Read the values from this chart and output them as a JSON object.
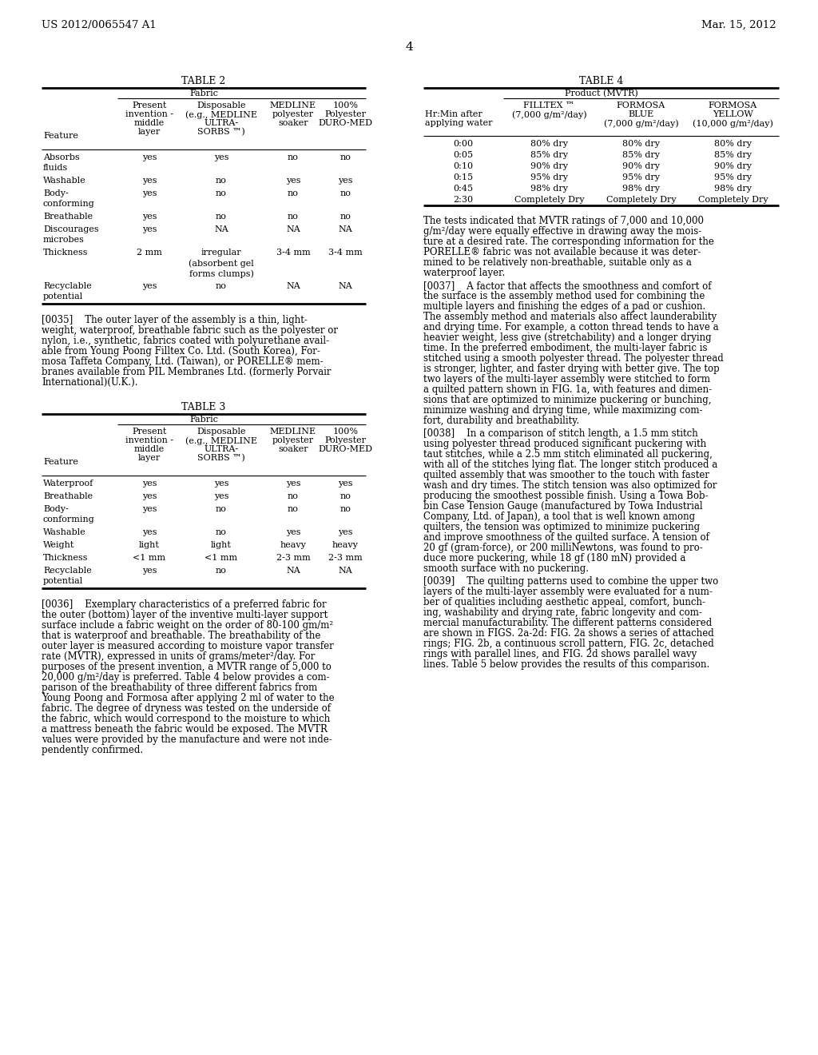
{
  "header_left": "US 2012/0065547 A1",
  "header_right": "Mar. 15, 2012",
  "page_number": "4",
  "bg": "#ffffff",
  "table2_title": "TABLE 2",
  "table2_group": "Fabric",
  "table2_col_headers": [
    "Feature",
    "Present\ninvention -\nmiddle\nlayer",
    "Disposable\n(e.g., MEDLINE\nULTRA-\nSORBS ™)",
    "MEDLINE\npolyester\nsoaker",
    "100%\nPolyester\nDURO-MED"
  ],
  "table2_rows": [
    [
      "Absorbs\nfluids",
      "yes",
      "yes",
      "no",
      "no"
    ],
    [
      "Washable",
      "yes",
      "no",
      "yes",
      "yes"
    ],
    [
      "Body-\nconforming",
      "yes",
      "no",
      "no",
      "no"
    ],
    [
      "Breathable",
      "yes",
      "no",
      "no",
      "no"
    ],
    [
      "Discourages\nmicrobes",
      "yes",
      "NA",
      "NA",
      "NA"
    ],
    [
      "Thickness",
      "2 mm",
      "irregular\n(absorbent gel\nforms clumps)",
      "3-4 mm",
      "3-4 mm"
    ],
    [
      "Recyclable\npotential",
      "yes",
      "no",
      "NA",
      "NA"
    ]
  ],
  "table3_title": "TABLE 3",
  "table3_group": "Fabric",
  "table3_col_headers": [
    "Feature",
    "Present\ninvention -\nmiddle\nlayer",
    "Disposable\n(e.g., MEDLINE\nULTRA-\nSORBS ™)",
    "MEDLINE\npolyester\nsoaker",
    "100%\nPolyester\nDURO-MED"
  ],
  "table3_rows": [
    [
      "Waterproof",
      "yes",
      "yes",
      "yes",
      "yes"
    ],
    [
      "Breathable",
      "yes",
      "yes",
      "no",
      "no"
    ],
    [
      "Body-\nconforming",
      "yes",
      "no",
      "no",
      "no"
    ],
    [
      "Washable",
      "yes",
      "no",
      "yes",
      "yes"
    ],
    [
      "Weight",
      "light",
      "light",
      "heavy",
      "heavy"
    ],
    [
      "Thickness",
      "<1 mm",
      "<1 mm",
      "2-3 mm",
      "2-3 mm"
    ],
    [
      "Recyclable\npotential",
      "yes",
      "no",
      "NA",
      "NA"
    ]
  ],
  "table4_title": "TABLE 4",
  "table4_group": "Product (MVTR)",
  "table4_col_headers": [
    "Hr:Min after\napplying water",
    "FILLTEX ™\n(7,000 g/m²/day)",
    "FORMOSA\nBLUE\n(7,000 g/m²/day)",
    "FORMOSA\nYELLOW\n(10,000 g/m²/day)"
  ],
  "table4_rows": [
    [
      "0:00",
      "80% dry",
      "80% dry",
      "80% dry"
    ],
    [
      "0:05",
      "85% dry",
      "85% dry",
      "85% dry"
    ],
    [
      "0:10",
      "90% dry",
      "90% dry",
      "90% dry"
    ],
    [
      "0:15",
      "95% dry",
      "95% dry",
      "95% dry"
    ],
    [
      "0:45",
      "98% dry",
      "98% dry",
      "98% dry"
    ],
    [
      "2:30",
      "Completely Dry",
      "Completely Dry",
      "Completely Dry"
    ]
  ],
  "para0035_lines": [
    "[0035]    The outer layer of the assembly is a thin, light-",
    "weight, waterproof, breathable fabric such as the polyester or",
    "nylon, i.e., synthetic, fabrics coated with polyurethane avail-",
    "able from Young Poong Filltex Co. Ltd. (South Korea), For-",
    "mosa Taffeta Company, Ltd. (Taiwan), or PORELLE® mem-",
    "branes available from PIL Membranes Ltd. (formerly Porvair",
    "International)(U.K.)."
  ],
  "para0036_lines": [
    "[0036]    Exemplary characteristics of a preferred fabric for",
    "the outer (bottom) layer of the inventive multi-layer support",
    "surface include a fabric weight on the order of 80-100 gm/m²",
    "that is waterproof and breathable. The breathability of the",
    "outer layer is measured according to moisture vapor transfer",
    "rate (MVTR), expressed in units of grams/meter²/day. For",
    "purposes of the present invention, a MVTR range of 5,000 to",
    "20,000 g/m²/day is preferred. Table 4 below provides a com-",
    "parison of the breathability of three different fabrics from",
    "Young Poong and Formosa after applying 2 ml of water to the",
    "fabric. The degree of dryness was tested on the underside of",
    "the fabric, which would correspond to the moisture to which",
    "a mattress beneath the fabric would be exposed. The MVTR",
    "values were provided by the manufacture and were not inde-",
    "pendently confirmed."
  ],
  "table4_note_lines": [
    "The tests indicated that MVTR ratings of 7,000 and 10,000",
    "g/m²/day were equally effective in drawing away the mois-",
    "ture at a desired rate. The corresponding information for the",
    "PORELLE® fabric was not available because it was deter-",
    "mined to be relatively non-breathable, suitable only as a",
    "waterproof layer."
  ],
  "para0037_lines": [
    "[0037]    A factor that affects the smoothness and comfort of",
    "the surface is the assembly method used for combining the",
    "multiple layers and finishing the edges of a pad or cushion.",
    "The assembly method and materials also affect launderability",
    "and drying time. For example, a cotton thread tends to have a",
    "heavier weight, less give (stretchability) and a longer drying",
    "time. In the preferred embodiment, the multi-layer fabric is",
    "stitched using a smooth polyester thread. The polyester thread",
    "is stronger, lighter, and faster drying with better give. The top",
    "two layers of the multi-layer assembly were stitched to form",
    "a quilted pattern shown in FIG. 1a, with features and dimen-",
    "sions that are optimized to minimize puckering or bunching,",
    "minimize washing and drying time, while maximizing com-",
    "fort, durability and breathability."
  ],
  "para0038_lines": [
    "[0038]    In a comparison of stitch length, a 1.5 mm stitch",
    "using polyester thread produced significant puckering with",
    "taut stitches, while a 2.5 mm stitch eliminated all puckering,",
    "with all of the stitches lying flat. The longer stitch produced a",
    "quilted assembly that was smoother to the touch with faster",
    "wash and dry times. The stitch tension was also optimized for",
    "producing the smoothest possible finish. Using a Towa Bob-",
    "bin Case Tension Gauge (manufactured by Towa Industrial",
    "Company, Ltd. of Japan), a tool that is well known among",
    "quilters, the tension was optimized to minimize puckering",
    "and improve smoothness of the quilted surface. A tension of",
    "20 gf (gram-force), or 200 milliNewtons, was found to pro-",
    "duce more puckering, while 18 gf (180 mN) provided a",
    "smooth surface with no puckering."
  ],
  "para0039_lines": [
    "[0039]    The quilting patterns used to combine the upper two",
    "layers of the multi-layer assembly were evaluated for a num-",
    "ber of qualities including aesthetic appeal, comfort, bunch-",
    "ing, washability and drying rate, fabric longevity and com-",
    "mercial manufacturability. The different patterns considered",
    "are shown in FIGS. 2a-2d: FIG. 2a shows a series of attached",
    "rings; FIG. 2b, a continuous scroll pattern, FIG. 2c, detached",
    "rings with parallel lines, and FIG. 2d shows parallel wavy",
    "lines. Table 5 below provides the results of this comparison."
  ]
}
